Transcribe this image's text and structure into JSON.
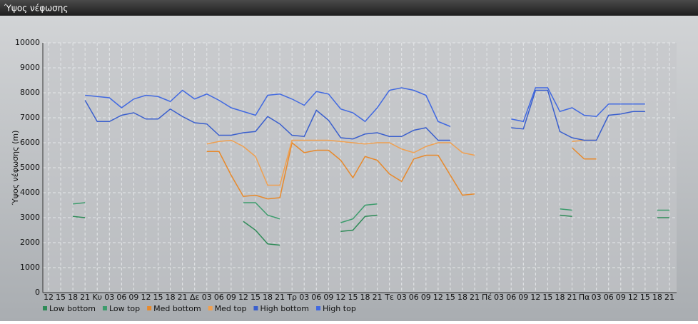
{
  "chart_data": {
    "type": "line",
    "title": "Ύψος νέφωσης",
    "y_label": "Ύψος νέφωσης (m)",
    "categories": [
      "12",
      "15",
      "18",
      "21",
      "Κυ",
      "03",
      "06",
      "09",
      "12",
      "15",
      "18",
      "21",
      "Δε",
      "03",
      "06",
      "09",
      "12",
      "15",
      "18",
      "21",
      "Τρ",
      "03",
      "06",
      "09",
      "12",
      "15",
      "18",
      "21",
      "Τε",
      "03",
      "06",
      "09",
      "12",
      "15",
      "18",
      "21",
      "Πέ",
      "03",
      "06",
      "09",
      "12",
      "15",
      "18",
      "21",
      "Πα",
      "03",
      "06",
      "09",
      "12",
      "15",
      "18",
      "21"
    ],
    "ylim": [
      0,
      10000
    ],
    "yticks": [
      0,
      1000,
      2000,
      3000,
      4000,
      5000,
      6000,
      7000,
      8000,
      9000,
      10000
    ],
    "grid": true,
    "series": [
      {
        "name": "Low bottom",
        "color": "#2e8b57",
        "values": [
          null,
          null,
          3050,
          3000,
          null,
          null,
          null,
          null,
          null,
          null,
          null,
          null,
          null,
          null,
          null,
          null,
          2850,
          2500,
          1950,
          1900,
          null,
          null,
          null,
          null,
          2450,
          2500,
          3050,
          3100,
          null,
          null,
          null,
          null,
          null,
          null,
          null,
          null,
          null,
          null,
          null,
          null,
          null,
          null,
          3100,
          3050,
          null,
          null,
          null,
          null,
          null,
          null,
          3000,
          3000
        ]
      },
      {
        "name": "Low top",
        "color": "#3c9c6c",
        "values": [
          null,
          null,
          3550,
          3600,
          null,
          null,
          null,
          null,
          null,
          null,
          null,
          null,
          null,
          null,
          null,
          null,
          3600,
          3600,
          3100,
          2950,
          null,
          null,
          null,
          null,
          2800,
          2950,
          3500,
          3550,
          null,
          null,
          null,
          null,
          null,
          null,
          null,
          null,
          null,
          null,
          null,
          null,
          null,
          null,
          3350,
          3300,
          null,
          null,
          null,
          null,
          null,
          null,
          3300,
          3300
        ]
      },
      {
        "name": "Med bottom",
        "color": "#e8892a",
        "values": [
          null,
          null,
          null,
          null,
          null,
          null,
          null,
          null,
          null,
          null,
          null,
          null,
          null,
          5650,
          5650,
          4700,
          3850,
          3900,
          3750,
          3800,
          6000,
          5600,
          5700,
          5700,
          5300,
          4600,
          5450,
          5300,
          4750,
          4450,
          5350,
          5500,
          5500,
          4700,
          3900,
          3950,
          null,
          null,
          null,
          null,
          null,
          null,
          null,
          5800,
          5350,
          5350,
          null,
          null,
          null,
          null,
          null,
          null
        ]
      },
      {
        "name": "Med top",
        "color": "#f0a050",
        "values": [
          null,
          null,
          null,
          null,
          null,
          null,
          null,
          null,
          null,
          null,
          null,
          null,
          null,
          5950,
          6050,
          6100,
          5850,
          5450,
          4300,
          4300,
          6100,
          6100,
          6100,
          6100,
          6050,
          6000,
          5950,
          6000,
          6000,
          5750,
          5600,
          5850,
          6000,
          6000,
          5600,
          5500,
          null,
          null,
          null,
          null,
          null,
          null,
          null,
          6050,
          6100,
          6100,
          null,
          null,
          null,
          null,
          null,
          null
        ]
      },
      {
        "name": "High bottom",
        "color": "#3a5fcd",
        "values": [
          null,
          null,
          null,
          7700,
          6850,
          6850,
          7100,
          7200,
          6950,
          6950,
          7350,
          7050,
          6800,
          6750,
          6300,
          6300,
          6400,
          6450,
          7050,
          6750,
          6300,
          6250,
          7300,
          6900,
          6200,
          6150,
          6350,
          6400,
          6250,
          6250,
          6500,
          6600,
          6100,
          6100,
          null,
          null,
          null,
          null,
          6600,
          6550,
          8100,
          8100,
          6450,
          6200,
          6100,
          6100,
          7100,
          7150,
          7250,
          7250,
          null,
          null
        ]
      },
      {
        "name": "High top",
        "color": "#4169e1",
        "values": [
          null,
          null,
          null,
          7900,
          7850,
          7800,
          7400,
          7750,
          7900,
          7850,
          7650,
          8100,
          7750,
          7950,
          7700,
          7400,
          7250,
          7100,
          7900,
          7950,
          7750,
          7500,
          8050,
          7950,
          7350,
          7200,
          6850,
          7400,
          8100,
          8200,
          8100,
          7900,
          6850,
          6650,
          null,
          null,
          null,
          null,
          6950,
          6850,
          8200,
          8200,
          7250,
          7400,
          7100,
          7050,
          7550,
          7550,
          7550,
          7550,
          null,
          null
        ]
      }
    ]
  }
}
